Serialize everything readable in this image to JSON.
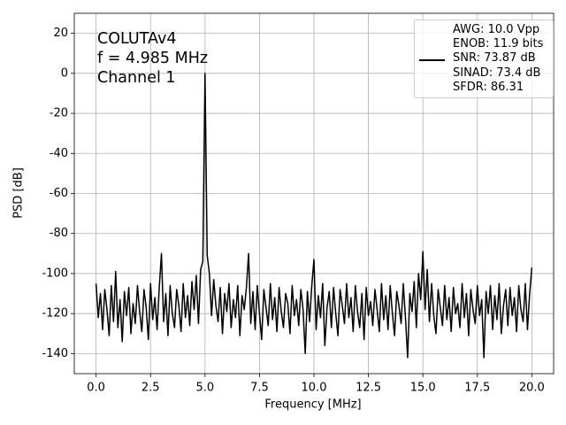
{
  "chart_data": {
    "type": "line",
    "annotations": [
      "COLUTAv4",
      "f = 4.985 MHz",
      "Channel 1"
    ],
    "xlabel": "Frequency [MHz]",
    "ylabel": "PSD [dB]",
    "xlim": [
      -1,
      21
    ],
    "ylim": [
      -150,
      30
    ],
    "xticks": [
      {
        "value": 0,
        "label": "0.0"
      },
      2.5,
      {
        "value": 5,
        "label": "5.0"
      },
      7.5,
      {
        "value": 10,
        "label": "10.0"
      },
      12.5,
      {
        "value": 15,
        "label": "15.0"
      },
      17.5,
      {
        "value": 20,
        "label": "20.0"
      }
    ],
    "yticks": [
      -140,
      -120,
      -100,
      -80,
      -60,
      -40,
      -20,
      0,
      20
    ],
    "grid": true,
    "legend": "upper right",
    "x": [
      0,
      0.1,
      0.2,
      0.3,
      0.4,
      0.5,
      0.6,
      0.7,
      0.8,
      0.9,
      1,
      1.1,
      1.2,
      1.3,
      1.4,
      1.5,
      1.6,
      1.7,
      1.8,
      1.9,
      2,
      2.1,
      2.2,
      2.3,
      2.4,
      2.5,
      2.6,
      2.7,
      2.8,
      2.9,
      3,
      3.1,
      3.2,
      3.3,
      3.4,
      3.5,
      3.6,
      3.7,
      3.8,
      3.9,
      4,
      4.1,
      4.2,
      4.3,
      4.4,
      4.5,
      4.6,
      4.7,
      4.8,
      4.9,
      5,
      5.1,
      5.2,
      5.3,
      5.4,
      5.5,
      5.6,
      5.7,
      5.8,
      5.9,
      6,
      6.1,
      6.2,
      6.3,
      6.4,
      6.5,
      6.6,
      6.7,
      6.8,
      6.9,
      7,
      7.1,
      7.2,
      7.3,
      7.4,
      7.5,
      7.6,
      7.7,
      7.8,
      7.9,
      8,
      8.1,
      8.2,
      8.3,
      8.4,
      8.5,
      8.6,
      8.7,
      8.8,
      8.9,
      9,
      9.1,
      9.2,
      9.3,
      9.4,
      9.5,
      9.6,
      9.7,
      9.8,
      9.9,
      10,
      10.1,
      10.2,
      10.3,
      10.4,
      10.5,
      10.6,
      10.7,
      10.8,
      10.9,
      11,
      11.1,
      11.2,
      11.3,
      11.4,
      11.5,
      11.6,
      11.7,
      11.8,
      11.9,
      12,
      12.1,
      12.2,
      12.3,
      12.4,
      12.5,
      12.6,
      12.7,
      12.8,
      12.9,
      13,
      13.1,
      13.2,
      13.3,
      13.4,
      13.5,
      13.6,
      13.7,
      13.8,
      13.9,
      14,
      14.1,
      14.2,
      14.3,
      14.4,
      14.5,
      14.6,
      14.7,
      14.8,
      14.9,
      15,
      15.1,
      15.2,
      15.3,
      15.4,
      15.5,
      15.6,
      15.7,
      15.8,
      15.9,
      16,
      16.1,
      16.2,
      16.3,
      16.4,
      16.5,
      16.6,
      16.7,
      16.8,
      16.9,
      17,
      17.1,
      17.2,
      17.3,
      17.4,
      17.5,
      17.6,
      17.7,
      17.8,
      17.9,
      18,
      18.1,
      18.2,
      18.3,
      18.4,
      18.5,
      18.6,
      18.7,
      18.8,
      18.9,
      19,
      19.1,
      19.2,
      19.3,
      19.4,
      19.5,
      19.6,
      19.7,
      19.8,
      19.9,
      20
    ],
    "series": [
      {
        "name": "AWG: 10.0 Vpp\nENOB: 11.9 bits\nSNR: 73.87 dB\nSINAD: 73.4 dB\nSFDR: 86.31",
        "color": "#000000",
        "values": [
          -105,
          -122,
          -110,
          -128,
          -108,
          -118,
          -131,
          -106,
          -124,
          -99,
          -127,
          -113,
          -134,
          -109,
          -121,
          -107,
          -130,
          -115,
          -125,
          -106,
          -119,
          -129,
          -108,
          -117,
          -133,
          -105,
          -123,
          -112,
          -128,
          -107,
          -90,
          -124,
          -110,
          -131,
          -106,
          -120,
          -127,
          -108,
          -116,
          -129,
          -105,
          -122,
          -111,
          -126,
          -104,
          -118,
          -101,
          -125,
          -98,
          -94,
          0,
          -91,
          -100,
          -121,
          -103,
          -116,
          -124,
          -107,
          -130,
          -110,
          -119,
          -105,
          -127,
          -113,
          -122,
          -106,
          -131,
          -111,
          -118,
          -107,
          -90,
          -125,
          -109,
          -128,
          -106,
          -120,
          -133,
          -108,
          -117,
          -126,
          -105,
          -123,
          -112,
          -129,
          -107,
          -119,
          -127,
          -110,
          -115,
          -130,
          -106,
          -121,
          -113,
          -126,
          -108,
          -118,
          -140,
          -109,
          -124,
          -106,
          -93,
          -128,
          -111,
          -122,
          -105,
          -136,
          -117,
          -109,
          -127,
          -107,
          -120,
          -131,
          -108,
          -116,
          -125,
          -105,
          -122,
          -112,
          -129,
          -106,
          -119,
          -127,
          -110,
          -133,
          -107,
          -121,
          -114,
          -126,
          -108,
          -118,
          -129,
          -105,
          -123,
          -111,
          -128,
          -106,
          -120,
          -131,
          -109,
          -116,
          -125,
          -105,
          -122,
          -142,
          -110,
          -119,
          -104,
          -127,
          -100,
          -113,
          -89,
          -118,
          -98,
          -124,
          -105,
          -121,
          -130,
          -108,
          -117,
          -126,
          -106,
          -123,
          -112,
          -129,
          -107,
          -120,
          -115,
          -127,
          -105,
          -122,
          -110,
          -131,
          -108,
          -118,
          -125,
          -106,
          -121,
          -113,
          -142,
          -109,
          -120,
          -106,
          -128,
          -111,
          -123,
          -105,
          -130,
          -116,
          -108,
          -126,
          -107,
          -121,
          -112,
          -129,
          -106,
          -118,
          -124,
          -105,
          -128,
          -110,
          -97
        ]
      }
    ]
  }
}
